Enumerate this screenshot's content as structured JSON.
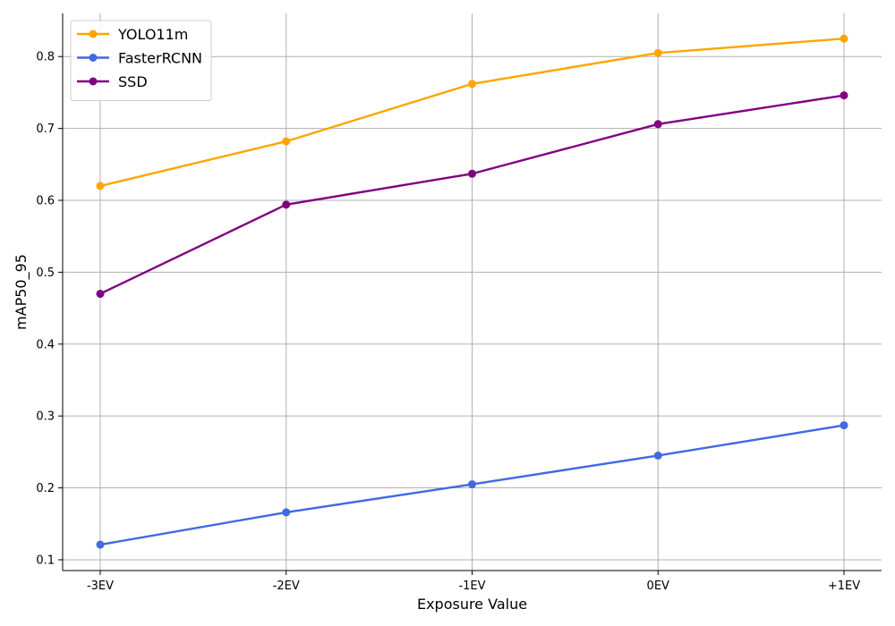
{
  "chart_data": {
    "type": "line",
    "xlabel": "Exposure Value",
    "ylabel": "mAP50_95",
    "categories": [
      "-3EV",
      "-2EV",
      "-1EV",
      "0EV",
      "+1EV"
    ],
    "ylim": [
      0.085,
      0.86
    ],
    "yticks": [
      0.1,
      0.2,
      0.3,
      0.4,
      0.5,
      0.6,
      0.7,
      0.8
    ],
    "ytick_labels": [
      "0.1",
      "0.2",
      "0.3",
      "0.4",
      "0.5",
      "0.6",
      "0.7",
      "0.8"
    ],
    "grid": true,
    "legend_position": "top-left",
    "series": [
      {
        "name": "YOLO11m",
        "color": "#ffa500",
        "values": [
          0.62,
          0.682,
          0.762,
          0.805,
          0.825
        ]
      },
      {
        "name": "FasterRCNN",
        "color": "#4169e1",
        "values": [
          0.121,
          0.166,
          0.205,
          0.245,
          0.287
        ]
      },
      {
        "name": "SSD",
        "color": "#800080",
        "values": [
          0.47,
          0.594,
          0.637,
          0.706,
          0.746
        ]
      }
    ]
  }
}
